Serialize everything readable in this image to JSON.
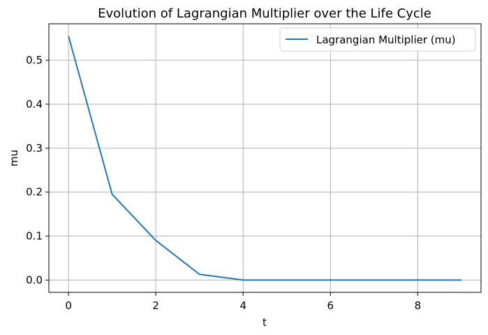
{
  "chart_data": {
    "type": "line",
    "title": "Evolution of Lagrangian Multiplier over the Life Cycle",
    "xlabel": "t",
    "ylabel": "mu",
    "xlim": [
      -0.45,
      9.45
    ],
    "ylim": [
      -0.028,
      0.583
    ],
    "xticks": [
      0,
      2,
      4,
      6,
      8
    ],
    "yticks": [
      0.0,
      0.1,
      0.2,
      0.3,
      0.4,
      0.5
    ],
    "xtick_labels": [
      "0",
      "2",
      "4",
      "6",
      "8"
    ],
    "ytick_labels": [
      "0.0",
      "0.1",
      "0.2",
      "0.3",
      "0.4",
      "0.5"
    ],
    "grid": true,
    "legend_position": "top-right",
    "series": [
      {
        "name": "Lagrangian Multiplier (mu)",
        "color": "#1f77b4",
        "x": [
          0,
          1,
          2,
          3,
          4,
          5,
          6,
          7,
          8,
          9
        ],
        "y": [
          0.555,
          0.195,
          0.09,
          0.013,
          0.0,
          0.0,
          0.0,
          0.0,
          0.0,
          0.0
        ]
      }
    ]
  }
}
